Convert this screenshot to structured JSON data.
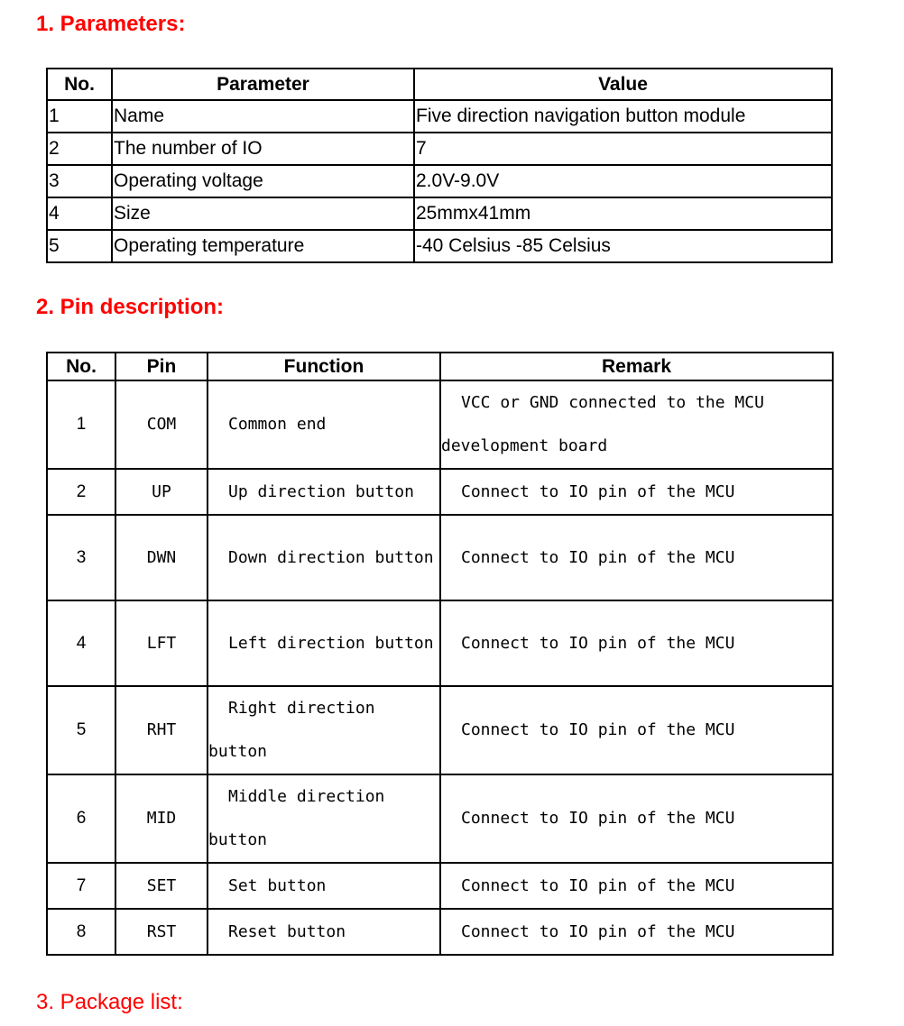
{
  "sections": {
    "s1": "1. Parameters:",
    "s2": "2. Pin description:",
    "s3": "3. Package list:"
  },
  "params": {
    "headers": [
      "No.",
      "Parameter",
      "Value"
    ],
    "rows": [
      [
        "1",
        "Name",
        "Five direction navigation button module"
      ],
      [
        "2",
        "The number of IO",
        "7"
      ],
      [
        "3",
        "Operating voltage",
        "2.0V-9.0V"
      ],
      [
        "4",
        "Size",
        "25mmx41mm"
      ],
      [
        "5",
        "Operating temperature",
        "-40 Celsius -85 Celsius"
      ]
    ]
  },
  "pins": {
    "headers": [
      "No.",
      "Pin",
      "Function",
      "Remark"
    ],
    "rows": [
      [
        "1",
        "COM",
        "Common end",
        "VCC or GND connected to the MCU development board"
      ],
      [
        "2",
        "UP",
        "Up direction button",
        "Connect to IO pin of the MCU"
      ],
      [
        "3",
        "DWN",
        "Down direction button",
        "Connect to IO pin of the MCU"
      ],
      [
        "4",
        "LFT",
        "Left direction button",
        "Connect to IO pin of the MCU"
      ],
      [
        "5",
        "RHT",
        "Right direction button",
        "Connect to IO pin of the MCU"
      ],
      [
        "6",
        "MID",
        "Middle direction button",
        "Connect to IO pin of the MCU"
      ],
      [
        "7",
        "SET",
        "Set button",
        "Connect to IO pin of the MCU"
      ],
      [
        "8",
        "RST",
        "Reset button",
        "Connect to IO pin of the MCU"
      ]
    ]
  }
}
